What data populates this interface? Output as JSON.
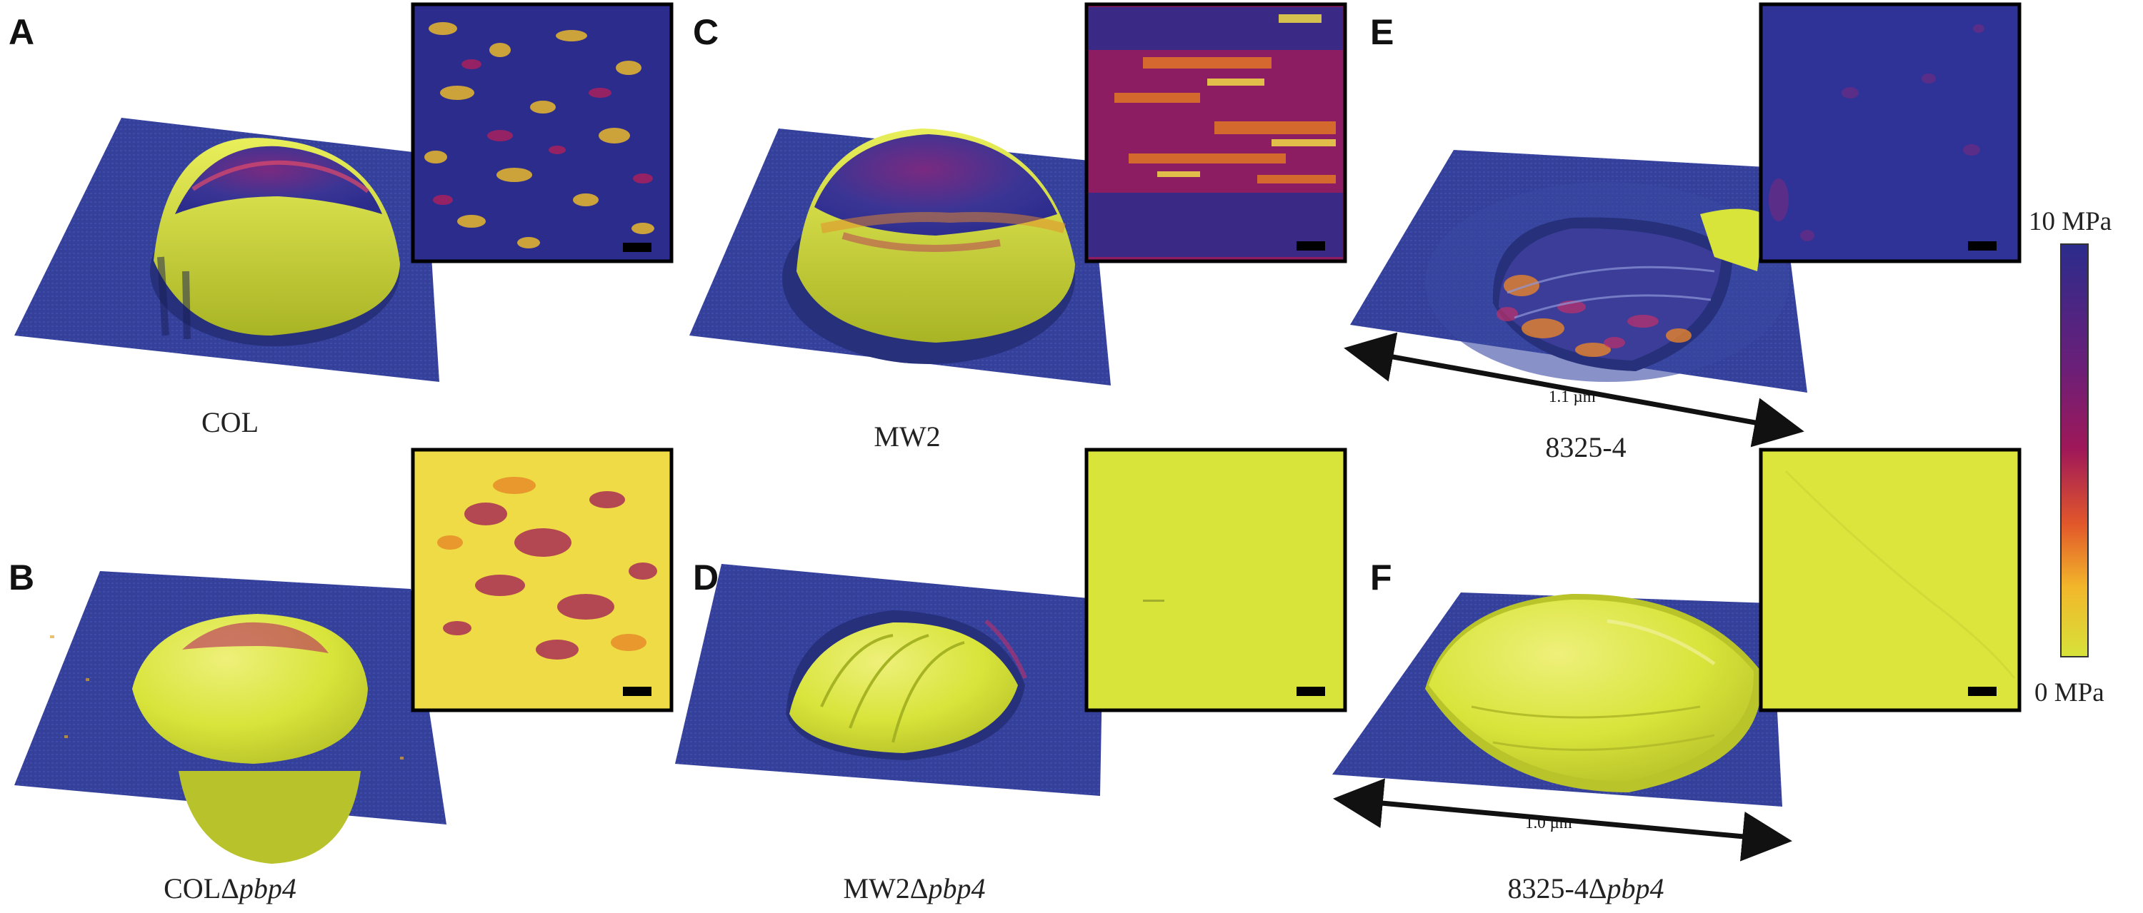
{
  "panels": [
    {
      "letter": "A",
      "strain": "COL",
      "suffix": ""
    },
    {
      "letter": "B",
      "strain": "COLΔ",
      "suffix": "pbp4"
    },
    {
      "letter": "C",
      "strain": "MW2",
      "suffix": ""
    },
    {
      "letter": "D",
      "strain": "MW2Δ",
      "suffix": "pbp4"
    },
    {
      "letter": "E",
      "strain": "8325-4",
      "suffix": "",
      "scale_bar": "1.1 µm"
    },
    {
      "letter": "F",
      "strain": "8325-4Δ",
      "suffix": "pbp4",
      "scale_bar": "1.0 µm"
    }
  ],
  "colorbar": {
    "max_label": "10 MPa",
    "min_label": "0 MPa",
    "colors": [
      "#2b2c8c",
      "#6b1f78",
      "#a01858",
      "#e2582a",
      "#f2b62a",
      "#d7e23a"
    ]
  },
  "palette": {
    "substrate": "#34409a",
    "stiff": "#2b2c8c",
    "mid": "#9b1d5e",
    "orange": "#e67c22",
    "soft": "#d8e43a"
  }
}
